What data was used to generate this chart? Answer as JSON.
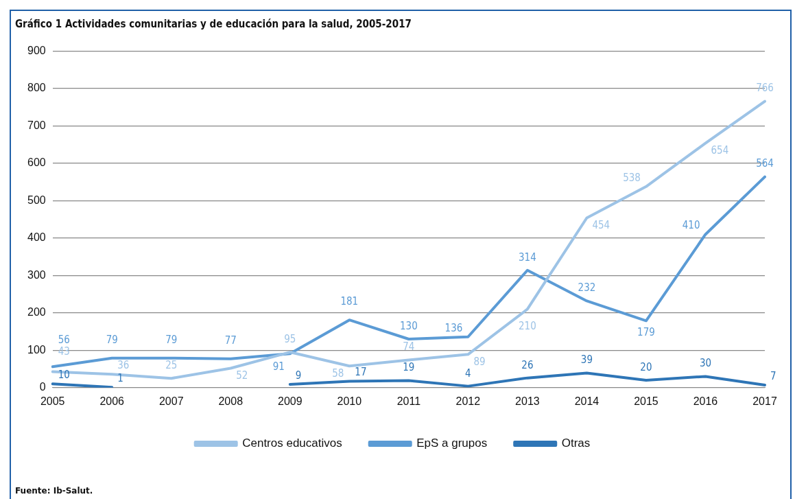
{
  "chart_data": {
    "type": "line",
    "title": "Gráfico 1 Actividades comunitarias y de educación para la salud, 2005-2017",
    "categories": [
      "2005",
      "2006",
      "2007",
      "2008",
      "2009",
      "2010",
      "2011",
      "2012",
      "2013",
      "2014",
      "2015",
      "2016",
      "2017"
    ],
    "series": [
      {
        "name": "Centros educativos",
        "color": "#9dc3e6",
        "values": [
          43,
          36,
          25,
          52,
          95,
          58,
          74,
          89,
          210,
          454,
          538,
          654,
          766
        ]
      },
      {
        "name": "EpS a grupos",
        "color": "#5b9bd5",
        "values": [
          56,
          79,
          79,
          77,
          91,
          181,
          130,
          136,
          314,
          232,
          179,
          410,
          564
        ]
      },
      {
        "name": "Otras",
        "color": "#2e75b6",
        "values": [
          10,
          1,
          null,
          null,
          9,
          17,
          19,
          4,
          26,
          39,
          20,
          30,
          7
        ]
      }
    ],
    "ylim": [
      0,
      900
    ],
    "yticks": [
      0,
      100,
      200,
      300,
      400,
      500,
      600,
      700,
      800,
      900
    ],
    "grid": "y",
    "legend": "bottom",
    "marker": "none",
    "line_style": "solid",
    "data_labels": true,
    "annotations": [
      "Fuente: Ib-Salut."
    ]
  }
}
